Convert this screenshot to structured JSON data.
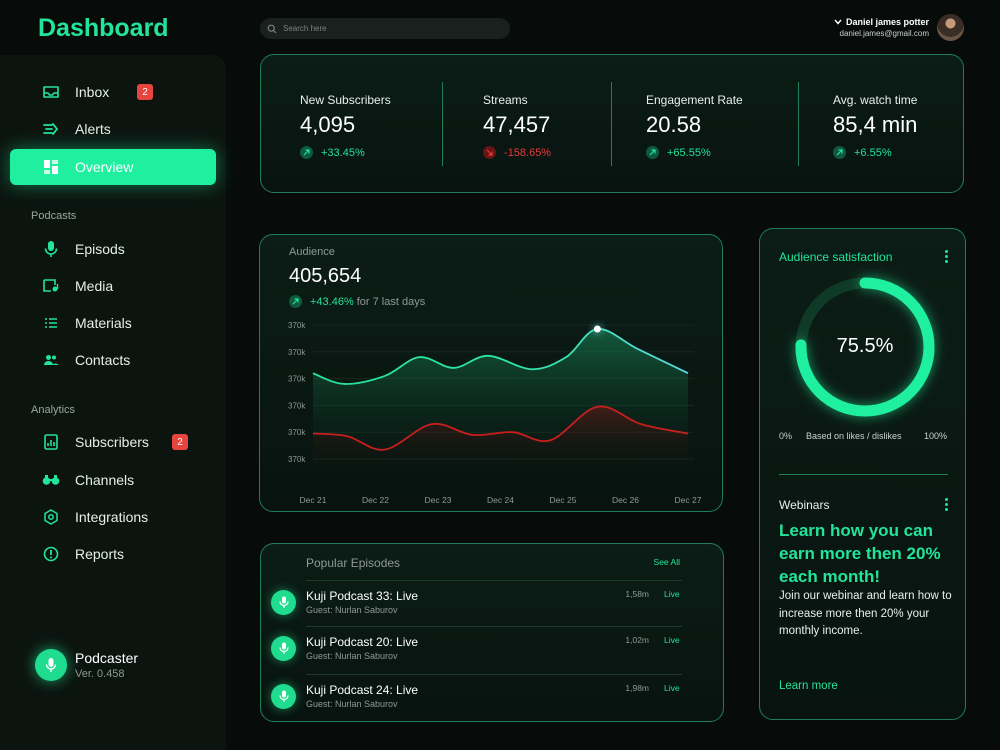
{
  "app": {
    "title": "Dashboard"
  },
  "search": {
    "placeholder": "Search here",
    "value": ""
  },
  "user": {
    "name": "Daniel james potter",
    "email": "daniel.james@gmail.com"
  },
  "sidebar": {
    "main_items": [
      {
        "label": "Inbox",
        "icon": "inbox-icon",
        "badge": "2"
      },
      {
        "label": "Alerts",
        "icon": "alerts-icon"
      },
      {
        "label": "Overview",
        "icon": "overview-icon",
        "active": true
      }
    ],
    "sections": [
      {
        "label": "Podcasts",
        "items": [
          {
            "label": "Episods",
            "icon": "microphone-icon"
          },
          {
            "label": "Media",
            "icon": "media-icon"
          },
          {
            "label": "Materials",
            "icon": "list-icon"
          },
          {
            "label": "Contacts",
            "icon": "contacts-icon"
          }
        ]
      },
      {
        "label": "Analytics",
        "items": [
          {
            "label": "Subscribers",
            "icon": "subscribers-icon",
            "badge": "2"
          },
          {
            "label": "Channels",
            "icon": "channels-icon"
          },
          {
            "label": "Integrations",
            "icon": "integrations-icon"
          },
          {
            "label": "Reports",
            "icon": "alert-circle-icon"
          }
        ]
      }
    ],
    "footer": {
      "title": "Podcaster",
      "version": "Ver. 0.458"
    }
  },
  "stats": [
    {
      "label": "New Subscribers",
      "value": "4,095",
      "change": "+33.45%",
      "trend": "up"
    },
    {
      "label": "Streams",
      "value": "47,457",
      "change": "-158.65%",
      "trend": "down"
    },
    {
      "label": "Engagement Rate",
      "value": "20.58",
      "change": "+65.55%",
      "trend": "up"
    },
    {
      "label": "Avg. watch time",
      "value": "85,4 min",
      "change": "+6.55%",
      "trend": "up"
    }
  ],
  "audience": {
    "label": "Audience",
    "value": "405,654",
    "change": "+43.46%",
    "period": "for 7 last days"
  },
  "chart_data": {
    "type": "line",
    "title": "",
    "x": [
      "Dec 21",
      "Dec 22",
      "Dec 23",
      "Dec 24",
      "Dec 25",
      "Dec 26",
      "Dec 27"
    ],
    "y_tick_labels": [
      "370k",
      "370k",
      "370k",
      "370k",
      "370k",
      "370k"
    ],
    "ylim": [
      0,
      5
    ],
    "grid": true,
    "series": [
      {
        "color": "#22e49a",
        "color_end": "#5ad8e0",
        "points": [
          [
            0,
            3.2
          ],
          [
            0.5,
            2.8
          ],
          [
            1.15,
            3.1
          ],
          [
            1.7,
            3.8
          ],
          [
            2.25,
            3.4
          ],
          [
            2.8,
            3.85
          ],
          [
            3.5,
            3.35
          ],
          [
            4.05,
            3.8
          ],
          [
            4.55,
            4.85
          ],
          [
            5.2,
            4.1
          ],
          [
            6,
            3.2
          ]
        ],
        "highlight_index": 8
      },
      {
        "color": "#c81e1e",
        "points": [
          [
            0,
            0.95
          ],
          [
            0.55,
            0.85
          ],
          [
            1.15,
            0.35
          ],
          [
            1.9,
            1.3
          ],
          [
            2.55,
            0.9
          ],
          [
            3.2,
            1.0
          ],
          [
            3.8,
            0.7
          ],
          [
            4.55,
            1.95
          ],
          [
            5.25,
            1.3
          ],
          [
            6,
            0.95
          ]
        ]
      }
    ]
  },
  "satisfaction": {
    "title": "Audience satisfaction",
    "value": "75.5%",
    "fraction": 0.755,
    "min": "0%",
    "caption": "Based on likes / dislikes",
    "max": "100%"
  },
  "webinars": {
    "label": "Webinars",
    "headline": "Learn how you can earn more then 20% each month!",
    "body": "Join our webinar and learn how to increase more then 20% your monthly income.",
    "link": "Learn more"
  },
  "popular": {
    "title": "Popular Episodes",
    "see_all": "See All",
    "episodes": [
      {
        "name": "Kuji Podcast  33: Live",
        "guest": "Guest: Nurlan Saburov",
        "listens": "1,58m",
        "status": "Live"
      },
      {
        "name": "Kuji Podcast  20: Live",
        "guest": "Guest: Nurlan Saburov",
        "listens": "1,02m",
        "status": "Live"
      },
      {
        "name": "Kuji Podcast  24: Live",
        "guest": "Guest: Nurlan Saburov",
        "listens": "1,98m",
        "status": "Live"
      }
    ]
  },
  "colors": {
    "accent": "#22e49a",
    "danger": "#e43b3b",
    "background": "#070c0a",
    "card_border": "#1f7e57"
  }
}
